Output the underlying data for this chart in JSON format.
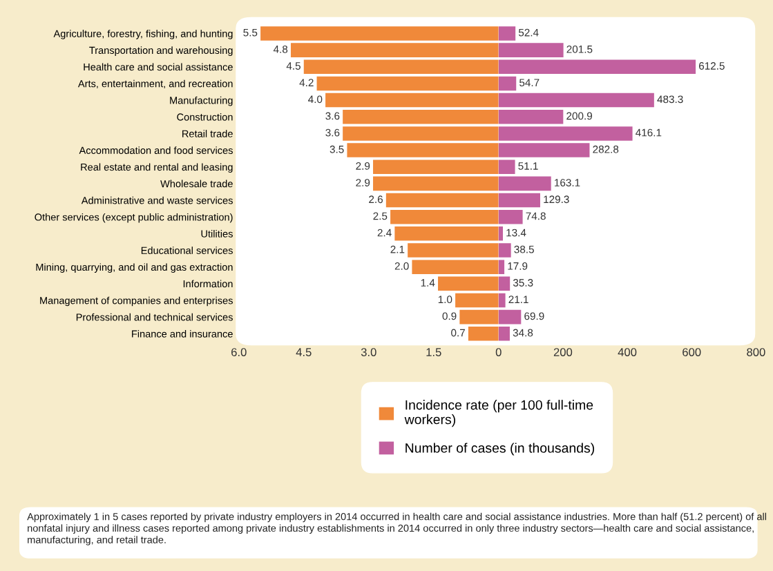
{
  "chart_data": [
    {
      "type": "bar",
      "orientation": "horizontal",
      "categories": [
        "Agriculture, forestry, fishing, and hunting",
        "Transportation and warehousing",
        "Health care and social assistance",
        "Arts, entertainment, and recreation",
        "Manufacturing",
        "Construction",
        "Retail trade",
        "Accommodation and food services",
        "Real estate and rental and leasing",
        "Wholesale trade",
        "Administrative and waste services",
        "Other services (except public administration)",
        "Utilities",
        "Educational services",
        "Mining, quarrying, and oil and gas extraction",
        "Information",
        "Management of companies and enterprises",
        "Professional and technical services",
        "Finance and insurance"
      ],
      "series": [
        {
          "name": "Incidence rate (per 100 full-time workers)",
          "color": "#f0893a",
          "values": [
            5.5,
            4.8,
            4.5,
            4.2,
            4.0,
            3.6,
            3.6,
            3.5,
            2.9,
            2.9,
            2.6,
            2.5,
            2.4,
            2.1,
            2.0,
            1.4,
            1.0,
            0.9,
            0.7
          ],
          "value_labels": [
            "5.5",
            "4.8",
            "4.5",
            "4.2",
            "4.0",
            "3.6",
            "3.6",
            "3.5",
            "2.9",
            "2.9",
            "2.6",
            "2.5",
            "2.4",
            "2.1",
            "2.0",
            "1.4",
            "1.0",
            "0.9",
            "0.7"
          ]
        }
      ],
      "xlim": [
        6.0,
        0
      ],
      "xticks": [
        {
          "value": 6.0,
          "label": "6.0"
        },
        {
          "value": 4.5,
          "label": "4.5"
        },
        {
          "value": 3.0,
          "label": "3.0"
        },
        {
          "value": 1.5,
          "label": "1.5"
        },
        0
      ],
      "legend": "bottom",
      "annotations": [
        "Approximately 1 in 5 cases reported by private industry employers in 2014 occurred in health care and social assistance industries. More than half (51.2 percent) of all nonfatal injury and illness cases reported among private industry establishments in 2014 occurred in only three industry sectors—health care and social assistance, manufacturing, and retail trade."
      ]
    },
    {
      "type": "bar",
      "orientation": "horizontal",
      "tick_labels": "x",
      "categories": [
        null,
        null,
        null,
        null,
        null,
        null,
        null,
        null,
        null,
        null,
        null,
        null,
        null,
        null,
        null,
        null,
        null,
        null,
        null
      ],
      "series": [
        {
          "name": "Number of cases (in thousands)",
          "color": "#c2609f",
          "values": [
            52.4,
            201.5,
            612.5,
            54.7,
            483.3,
            200.9,
            416.1,
            282.8,
            51.1,
            163.1,
            129.3,
            74.8,
            13.4,
            38.5,
            17.9,
            35.3,
            21.1,
            69.9,
            34.8
          ],
          "value_labels": [
            "52.4",
            "201.5",
            "612.5",
            "54.7",
            "483.3",
            "200.9",
            "416.1",
            "282.8",
            "51.1",
            "163.1",
            "129.3",
            "74.8",
            "13.4",
            "38.5",
            "17.9",
            "35.3",
            "21.1",
            "69.9",
            "34.8"
          ]
        }
      ],
      "xlim": [
        0,
        800
      ],
      "xticks": [
        200,
        400,
        600,
        800
      ],
      "legend": "bottom"
    }
  ]
}
